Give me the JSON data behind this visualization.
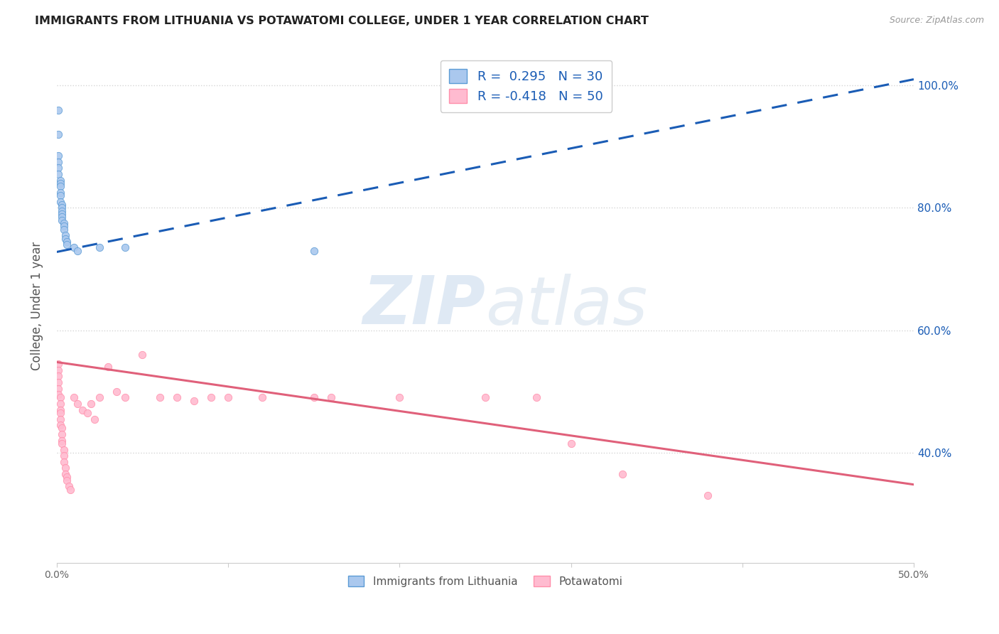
{
  "title": "IMMIGRANTS FROM LITHUANIA VS POTAWATOMI COLLEGE, UNDER 1 YEAR CORRELATION CHART",
  "source": "Source: ZipAtlas.com",
  "ylabel": "College, Under 1 year",
  "legend1_R": "0.295",
  "legend1_N": "30",
  "legend2_R": "-0.418",
  "legend2_N": "50",
  "legend_label1": "Immigrants from Lithuania",
  "legend_label2": "Potawatomi",
  "xmin": 0.0,
  "xmax": 0.5,
  "ymin": 0.22,
  "ymax": 1.06,
  "blue_scatter": [
    [
      0.001,
      0.96
    ],
    [
      0.001,
      0.92
    ],
    [
      0.001,
      0.885
    ],
    [
      0.001,
      0.875
    ],
    [
      0.001,
      0.865
    ],
    [
      0.001,
      0.855
    ],
    [
      0.002,
      0.845
    ],
    [
      0.002,
      0.84
    ],
    [
      0.002,
      0.835
    ],
    [
      0.002,
      0.825
    ],
    [
      0.002,
      0.82
    ],
    [
      0.002,
      0.81
    ],
    [
      0.003,
      0.805
    ],
    [
      0.003,
      0.8
    ],
    [
      0.003,
      0.795
    ],
    [
      0.003,
      0.79
    ],
    [
      0.003,
      0.785
    ],
    [
      0.003,
      0.78
    ],
    [
      0.004,
      0.775
    ],
    [
      0.004,
      0.77
    ],
    [
      0.004,
      0.765
    ],
    [
      0.005,
      0.755
    ],
    [
      0.005,
      0.75
    ],
    [
      0.006,
      0.745
    ],
    [
      0.006,
      0.74
    ],
    [
      0.01,
      0.735
    ],
    [
      0.012,
      0.73
    ],
    [
      0.025,
      0.735
    ],
    [
      0.04,
      0.735
    ],
    [
      0.15,
      0.73
    ]
  ],
  "pink_scatter": [
    [
      0.001,
      0.545
    ],
    [
      0.001,
      0.535
    ],
    [
      0.001,
      0.525
    ],
    [
      0.001,
      0.515
    ],
    [
      0.001,
      0.505
    ],
    [
      0.001,
      0.495
    ],
    [
      0.002,
      0.49
    ],
    [
      0.002,
      0.48
    ],
    [
      0.002,
      0.47
    ],
    [
      0.002,
      0.465
    ],
    [
      0.002,
      0.455
    ],
    [
      0.002,
      0.445
    ],
    [
      0.003,
      0.44
    ],
    [
      0.003,
      0.43
    ],
    [
      0.003,
      0.42
    ],
    [
      0.003,
      0.415
    ],
    [
      0.004,
      0.405
    ],
    [
      0.004,
      0.395
    ],
    [
      0.004,
      0.385
    ],
    [
      0.005,
      0.375
    ],
    [
      0.005,
      0.365
    ],
    [
      0.006,
      0.36
    ],
    [
      0.006,
      0.355
    ],
    [
      0.007,
      0.345
    ],
    [
      0.008,
      0.34
    ],
    [
      0.01,
      0.49
    ],
    [
      0.012,
      0.48
    ],
    [
      0.015,
      0.47
    ],
    [
      0.018,
      0.465
    ],
    [
      0.02,
      0.48
    ],
    [
      0.022,
      0.455
    ],
    [
      0.025,
      0.49
    ],
    [
      0.03,
      0.54
    ],
    [
      0.035,
      0.5
    ],
    [
      0.04,
      0.49
    ],
    [
      0.05,
      0.56
    ],
    [
      0.06,
      0.49
    ],
    [
      0.07,
      0.49
    ],
    [
      0.08,
      0.485
    ],
    [
      0.09,
      0.49
    ],
    [
      0.1,
      0.49
    ],
    [
      0.12,
      0.49
    ],
    [
      0.15,
      0.49
    ],
    [
      0.16,
      0.49
    ],
    [
      0.2,
      0.49
    ],
    [
      0.25,
      0.49
    ],
    [
      0.28,
      0.49
    ],
    [
      0.3,
      0.415
    ],
    [
      0.33,
      0.365
    ],
    [
      0.38,
      0.33
    ]
  ],
  "blue_line_x": [
    0.0,
    0.5
  ],
  "blue_line_y": [
    0.728,
    1.01
  ],
  "pink_line_x": [
    0.0,
    0.5
  ],
  "pink_line_y": [
    0.548,
    0.348
  ],
  "blue_color": "#5B9BD5",
  "pink_color": "#FF8FAB",
  "blue_scatter_color": "#aac8ee",
  "pink_scatter_color": "#ffbbd0",
  "blue_line_color": "#1a5cb5",
  "pink_line_color": "#e0607a",
  "watermark_zip": "ZIP",
  "watermark_atlas": "atlas",
  "background_color": "#ffffff",
  "grid_color": "#d5d5d5"
}
